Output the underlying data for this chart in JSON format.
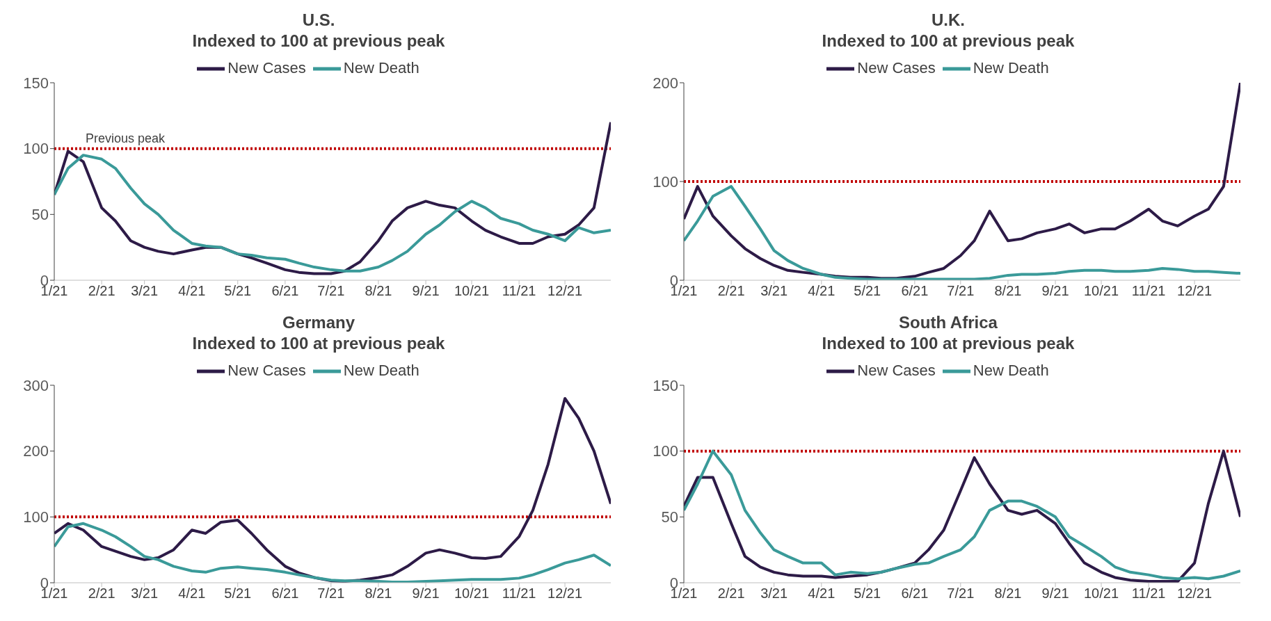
{
  "chart_data": [
    {
      "type": "line",
      "title": "U.S.",
      "subtitle": "Indexed to 100 at previous peak",
      "legend": "top",
      "grid": false,
      "x": [
        "2021-01-01",
        "2021-01-10",
        "2021-01-20",
        "2021-02-01",
        "2021-02-10",
        "2021-02-20",
        "2021-03-01",
        "2021-03-10",
        "2021-03-20",
        "2021-04-01",
        "2021-04-10",
        "2021-04-20",
        "2021-05-01",
        "2021-05-10",
        "2021-05-20",
        "2021-06-01",
        "2021-06-10",
        "2021-06-20",
        "2021-07-01",
        "2021-07-10",
        "2021-07-20",
        "2021-08-01",
        "2021-08-10",
        "2021-08-20",
        "2021-09-01",
        "2021-09-10",
        "2021-09-20",
        "2021-10-01",
        "2021-10-10",
        "2021-10-20",
        "2021-11-01",
        "2021-11-10",
        "2021-11-20",
        "2021-12-01",
        "2021-12-10",
        "2021-12-20",
        "2021-12-31"
      ],
      "series": [
        {
          "name": "New Cases",
          "color": "#2d1b47",
          "values": [
            65,
            98,
            90,
            55,
            45,
            30,
            25,
            22,
            20,
            23,
            25,
            25,
            20,
            17,
            13,
            8,
            6,
            5,
            5,
            7,
            14,
            30,
            45,
            55,
            60,
            57,
            55,
            45,
            38,
            33,
            28,
            28,
            33,
            35,
            42,
            55,
            120
          ]
        },
        {
          "name": "New Death",
          "color": "#3a9a99",
          "values": [
            65,
            85,
            95,
            92,
            85,
            70,
            58,
            50,
            38,
            28,
            26,
            25,
            20,
            19,
            17,
            16,
            13,
            10,
            8,
            7,
            7,
            10,
            15,
            22,
            35,
            42,
            52,
            60,
            55,
            47,
            43,
            38,
            35,
            30,
            40,
            36,
            38
          ]
        }
      ],
      "ylim": [
        0,
        150
      ],
      "yticks": [
        0,
        50,
        100,
        150
      ],
      "xlim": [
        "2021-01-01",
        "2021-12-31"
      ],
      "xticks": [
        {
          "value": "2021-01-01",
          "label": "1/21"
        },
        {
          "value": "2021-02-01",
          "label": "2/21"
        },
        {
          "value": "2021-03-01",
          "label": "3/21"
        },
        {
          "value": "2021-04-01",
          "label": "4/21"
        },
        {
          "value": "2021-05-01",
          "label": "5/21"
        },
        {
          "value": "2021-06-01",
          "label": "6/21"
        },
        {
          "value": "2021-07-01",
          "label": "7/21"
        },
        {
          "value": "2021-08-01",
          "label": "8/21"
        },
        {
          "value": "2021-09-01",
          "label": "9/21"
        },
        {
          "value": "2021-10-01",
          "label": "10/21"
        },
        {
          "value": "2021-11-01",
          "label": "11/21"
        },
        {
          "value": "2021-12-01",
          "label": "12/21"
        }
      ],
      "ref_lines": [
        {
          "axis": "y",
          "value": 100,
          "label": "Previous peak",
          "color": "#c00000",
          "line_style": "dotted"
        }
      ]
    },
    {
      "type": "line",
      "title": "U.K.",
      "subtitle": "Indexed to 100 at previous peak",
      "legend": "top",
      "grid": false,
      "x": [
        "2021-01-01",
        "2021-01-10",
        "2021-01-20",
        "2021-02-01",
        "2021-02-10",
        "2021-02-20",
        "2021-03-01",
        "2021-03-10",
        "2021-03-20",
        "2021-04-01",
        "2021-04-10",
        "2021-04-20",
        "2021-05-01",
        "2021-05-10",
        "2021-05-20",
        "2021-06-01",
        "2021-06-10",
        "2021-06-20",
        "2021-07-01",
        "2021-07-10",
        "2021-07-20",
        "2021-08-01",
        "2021-08-10",
        "2021-08-20",
        "2021-09-01",
        "2021-09-10",
        "2021-09-20",
        "2021-10-01",
        "2021-10-10",
        "2021-10-20",
        "2021-11-01",
        "2021-11-10",
        "2021-11-20",
        "2021-12-01",
        "2021-12-10",
        "2021-12-20",
        "2021-12-31"
      ],
      "series": [
        {
          "name": "New Cases",
          "color": "#2d1b47",
          "values": [
            62,
            95,
            65,
            45,
            32,
            22,
            15,
            10,
            8,
            6,
            4,
            3,
            3,
            2,
            2,
            4,
            8,
            12,
            25,
            40,
            70,
            40,
            42,
            48,
            52,
            57,
            48,
            52,
            52,
            60,
            72,
            60,
            55,
            65,
            72,
            95,
            200
          ]
        },
        {
          "name": "New Death",
          "color": "#3a9a99",
          "values": [
            40,
            60,
            85,
            95,
            75,
            52,
            30,
            20,
            12,
            6,
            3,
            2,
            1,
            1,
            1,
            1,
            1,
            1,
            1,
            1,
            2,
            5,
            6,
            6,
            7,
            9,
            10,
            10,
            9,
            9,
            10,
            12,
            11,
            9,
            9,
            8,
            7
          ]
        }
      ],
      "ylim": [
        0,
        200
      ],
      "yticks": [
        0,
        100,
        200
      ],
      "xlim": [
        "2021-01-01",
        "2021-12-31"
      ],
      "xticks": [
        {
          "value": "2021-01-01",
          "label": "1/21"
        },
        {
          "value": "2021-02-01",
          "label": "2/21"
        },
        {
          "value": "2021-03-01",
          "label": "3/21"
        },
        {
          "value": "2021-04-01",
          "label": "4/21"
        },
        {
          "value": "2021-05-01",
          "label": "5/21"
        },
        {
          "value": "2021-06-01",
          "label": "6/21"
        },
        {
          "value": "2021-07-01",
          "label": "7/21"
        },
        {
          "value": "2021-08-01",
          "label": "8/21"
        },
        {
          "value": "2021-09-01",
          "label": "9/21"
        },
        {
          "value": "2021-10-01",
          "label": "10/21"
        },
        {
          "value": "2021-11-01",
          "label": "11/21"
        },
        {
          "value": "2021-12-01",
          "label": "12/21"
        }
      ],
      "ref_lines": [
        {
          "axis": "y",
          "value": 100,
          "color": "#c00000",
          "line_style": "dotted"
        }
      ]
    },
    {
      "type": "line",
      "title": "Germany",
      "subtitle": "Indexed to 100 at previous peak",
      "legend": "top",
      "grid": false,
      "x": [
        "2021-01-01",
        "2021-01-10",
        "2021-01-20",
        "2021-02-01",
        "2021-02-10",
        "2021-02-20",
        "2021-03-01",
        "2021-03-10",
        "2021-03-20",
        "2021-04-01",
        "2021-04-10",
        "2021-04-20",
        "2021-05-01",
        "2021-05-10",
        "2021-05-20",
        "2021-06-01",
        "2021-06-10",
        "2021-06-20",
        "2021-07-01",
        "2021-07-10",
        "2021-07-20",
        "2021-08-01",
        "2021-08-10",
        "2021-08-20",
        "2021-09-01",
        "2021-09-10",
        "2021-09-20",
        "2021-10-01",
        "2021-10-10",
        "2021-10-20",
        "2021-11-01",
        "2021-11-10",
        "2021-11-20",
        "2021-12-01",
        "2021-12-10",
        "2021-12-20",
        "2021-12-31"
      ],
      "series": [
        {
          "name": "New Cases",
          "color": "#2d1b47",
          "values": [
            75,
            90,
            80,
            55,
            48,
            40,
            35,
            38,
            50,
            80,
            75,
            92,
            95,
            75,
            50,
            25,
            15,
            8,
            3,
            2,
            4,
            8,
            12,
            25,
            45,
            50,
            45,
            38,
            37,
            40,
            70,
            110,
            180,
            280,
            250,
            200,
            120
          ]
        },
        {
          "name": "New Death",
          "color": "#3a9a99",
          "values": [
            55,
            85,
            90,
            80,
            70,
            55,
            40,
            35,
            25,
            18,
            16,
            22,
            24,
            22,
            20,
            16,
            12,
            8,
            4,
            3,
            3,
            2,
            1,
            1,
            2,
            3,
            4,
            5,
            5,
            5,
            7,
            12,
            20,
            30,
            35,
            42,
            26
          ]
        }
      ],
      "ylim": [
        0,
        300
      ],
      "yticks": [
        0,
        100,
        200,
        300
      ],
      "xlim": [
        "2021-01-01",
        "2021-12-31"
      ],
      "xticks": [
        {
          "value": "2021-01-01",
          "label": "1/21"
        },
        {
          "value": "2021-02-01",
          "label": "2/21"
        },
        {
          "value": "2021-03-01",
          "label": "3/21"
        },
        {
          "value": "2021-04-01",
          "label": "4/21"
        },
        {
          "value": "2021-05-01",
          "label": "5/21"
        },
        {
          "value": "2021-06-01",
          "label": "6/21"
        },
        {
          "value": "2021-07-01",
          "label": "7/21"
        },
        {
          "value": "2021-08-01",
          "label": "8/21"
        },
        {
          "value": "2021-09-01",
          "label": "9/21"
        },
        {
          "value": "2021-10-01",
          "label": "10/21"
        },
        {
          "value": "2021-11-01",
          "label": "11/21"
        },
        {
          "value": "2021-12-01",
          "label": "12/21"
        }
      ],
      "ref_lines": [
        {
          "axis": "y",
          "value": 100,
          "color": "#c00000",
          "line_style": "dotted"
        }
      ]
    },
    {
      "type": "line",
      "title": "South Africa",
      "subtitle": "Indexed to 100 at previous peak",
      "legend": "top",
      "grid": false,
      "x": [
        "2021-01-01",
        "2021-01-10",
        "2021-01-20",
        "2021-02-01",
        "2021-02-10",
        "2021-02-20",
        "2021-03-01",
        "2021-03-10",
        "2021-03-20",
        "2021-04-01",
        "2021-04-10",
        "2021-04-20",
        "2021-05-01",
        "2021-05-10",
        "2021-05-20",
        "2021-06-01",
        "2021-06-10",
        "2021-06-20",
        "2021-07-01",
        "2021-07-10",
        "2021-07-20",
        "2021-08-01",
        "2021-08-10",
        "2021-08-20",
        "2021-09-01",
        "2021-09-10",
        "2021-09-20",
        "2021-10-01",
        "2021-10-10",
        "2021-10-20",
        "2021-11-01",
        "2021-11-10",
        "2021-11-20",
        "2021-12-01",
        "2021-12-10",
        "2021-12-20",
        "2021-12-31"
      ],
      "series": [
        {
          "name": "New Cases",
          "color": "#2d1b47",
          "values": [
            58,
            80,
            80,
            45,
            20,
            12,
            8,
            6,
            5,
            5,
            4,
            5,
            6,
            8,
            11,
            15,
            25,
            40,
            70,
            95,
            75,
            55,
            52,
            55,
            45,
            30,
            15,
            8,
            4,
            2,
            1,
            1,
            1,
            15,
            60,
            100,
            50
          ]
        },
        {
          "name": "New Death",
          "color": "#3a9a99",
          "values": [
            55,
            75,
            100,
            82,
            55,
            38,
            25,
            20,
            15,
            15,
            6,
            8,
            7,
            8,
            11,
            14,
            15,
            20,
            25,
            35,
            55,
            62,
            62,
            58,
            50,
            35,
            28,
            20,
            12,
            8,
            6,
            4,
            3,
            4,
            3,
            5,
            9
          ]
        }
      ],
      "ylim": [
        0,
        150
      ],
      "yticks": [
        0,
        50,
        100,
        150
      ],
      "xlim": [
        "2021-01-01",
        "2021-12-31"
      ],
      "xticks": [
        {
          "value": "2021-01-01",
          "label": "1/21"
        },
        {
          "value": "2021-02-01",
          "label": "2/21"
        },
        {
          "value": "2021-03-01",
          "label": "3/21"
        },
        {
          "value": "2021-04-01",
          "label": "4/21"
        },
        {
          "value": "2021-05-01",
          "label": "5/21"
        },
        {
          "value": "2021-06-01",
          "label": "6/21"
        },
        {
          "value": "2021-07-01",
          "label": "7/21"
        },
        {
          "value": "2021-08-01",
          "label": "8/21"
        },
        {
          "value": "2021-09-01",
          "label": "9/21"
        },
        {
          "value": "2021-10-01",
          "label": "10/21"
        },
        {
          "value": "2021-11-01",
          "label": "11/21"
        },
        {
          "value": "2021-12-01",
          "label": "12/21"
        }
      ],
      "ref_lines": [
        {
          "axis": "y",
          "value": 100,
          "color": "#c00000",
          "line_style": "dotted"
        }
      ]
    }
  ]
}
